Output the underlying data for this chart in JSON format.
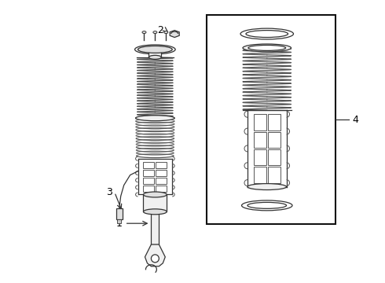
{
  "bg_color": "#ffffff",
  "line_color": "#555555",
  "dark_line": "#333333",
  "label_color": "#000000",
  "fill_light": "#f0f0f0",
  "fill_mid": "#e0e0e0",
  "fill_dark": "#cccccc"
}
